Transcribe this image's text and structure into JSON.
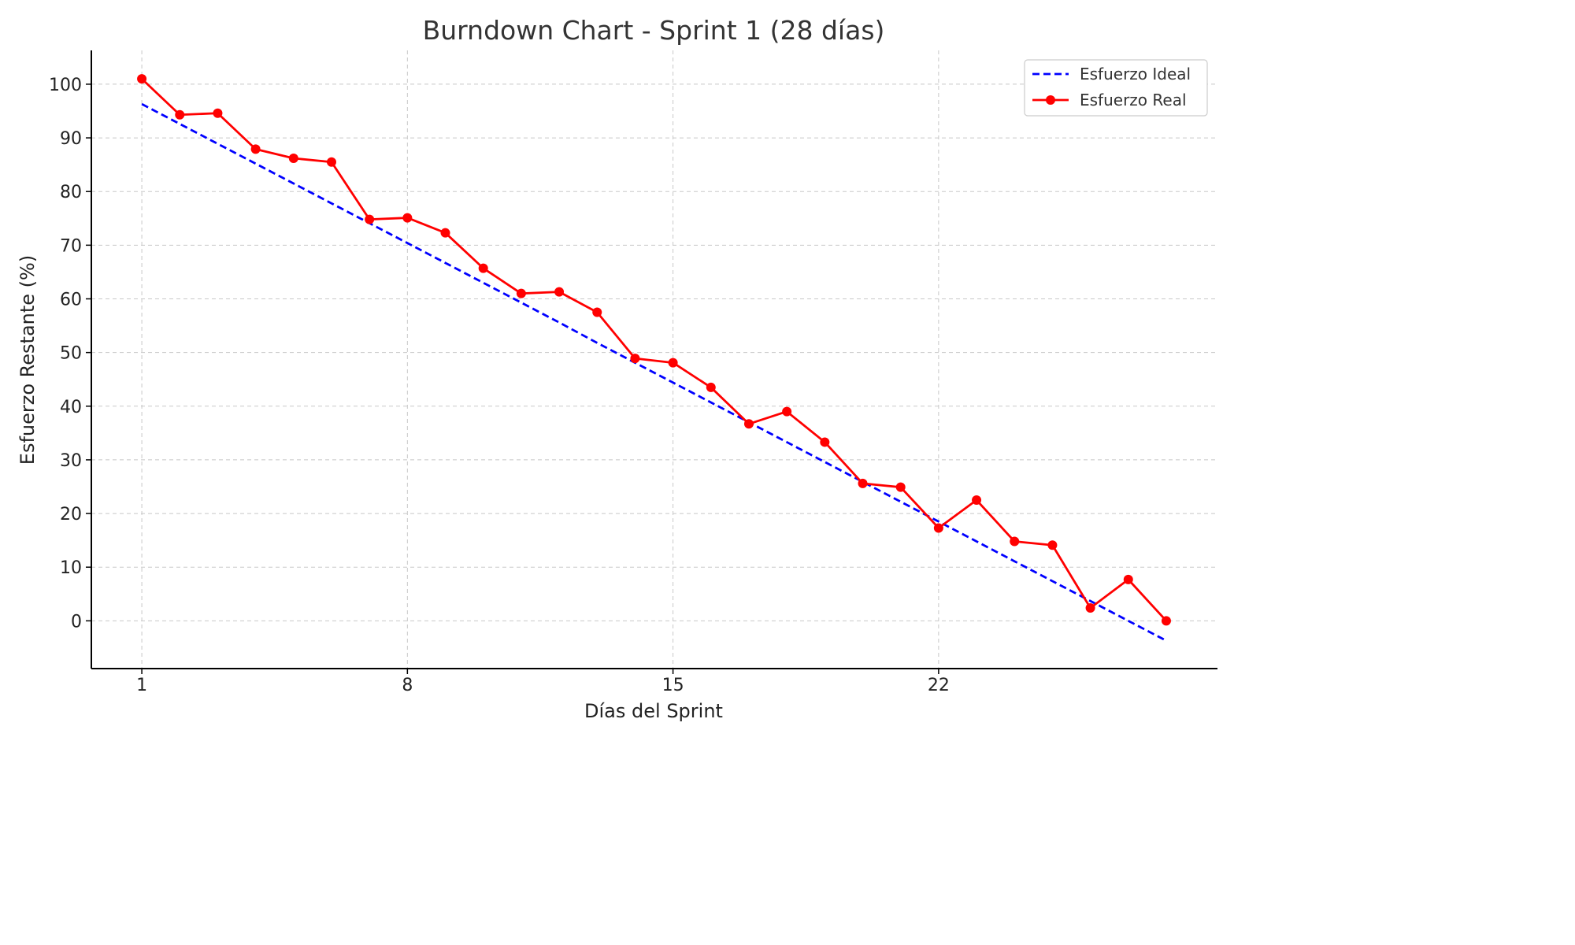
{
  "chart_data": {
    "type": "line",
    "title": "Burndown Chart - Sprint 1 (28 días)",
    "xlabel": "Días del Sprint",
    "ylabel": "Esfuerzo Restante (%)",
    "x": [
      1,
      2,
      3,
      4,
      5,
      6,
      7,
      8,
      9,
      10,
      11,
      12,
      13,
      14,
      15,
      16,
      17,
      18,
      19,
      20,
      21,
      22,
      23,
      24,
      25,
      26,
      27,
      28
    ],
    "xticks": [
      1,
      8,
      15,
      22
    ],
    "yticks": [
      0,
      10,
      20,
      30,
      40,
      50,
      60,
      70,
      80,
      90,
      100
    ],
    "xlim": [
      -0.33,
      29.35
    ],
    "ylim": [
      -8.9,
      106.3
    ],
    "grid": true,
    "legend_position": "top-right",
    "series": [
      {
        "name": "Esfuerzo Ideal",
        "style": "dashed",
        "color": "#0000ff",
        "values": [
          96.3,
          92.6,
          88.9,
          85.2,
          81.5,
          77.8,
          74.1,
          70.4,
          66.7,
          63.0,
          59.3,
          55.6,
          51.8,
          48.1,
          44.4,
          40.7,
          37.0,
          33.3,
          29.6,
          25.9,
          22.2,
          18.5,
          14.8,
          11.1,
          7.4,
          3.7,
          0.0,
          -3.7
        ]
      },
      {
        "name": "Esfuerzo Real",
        "style": "solid-markers",
        "color": "#ff0000",
        "values": [
          101.0,
          94.3,
          94.6,
          87.9,
          86.2,
          85.5,
          74.8,
          75.1,
          72.3,
          65.7,
          61.0,
          61.3,
          57.5,
          48.9,
          48.1,
          43.5,
          36.7,
          39.0,
          33.3,
          25.6,
          24.9,
          17.3,
          22.5,
          14.8,
          14.1,
          2.4,
          7.7,
          0.0
        ]
      }
    ]
  }
}
